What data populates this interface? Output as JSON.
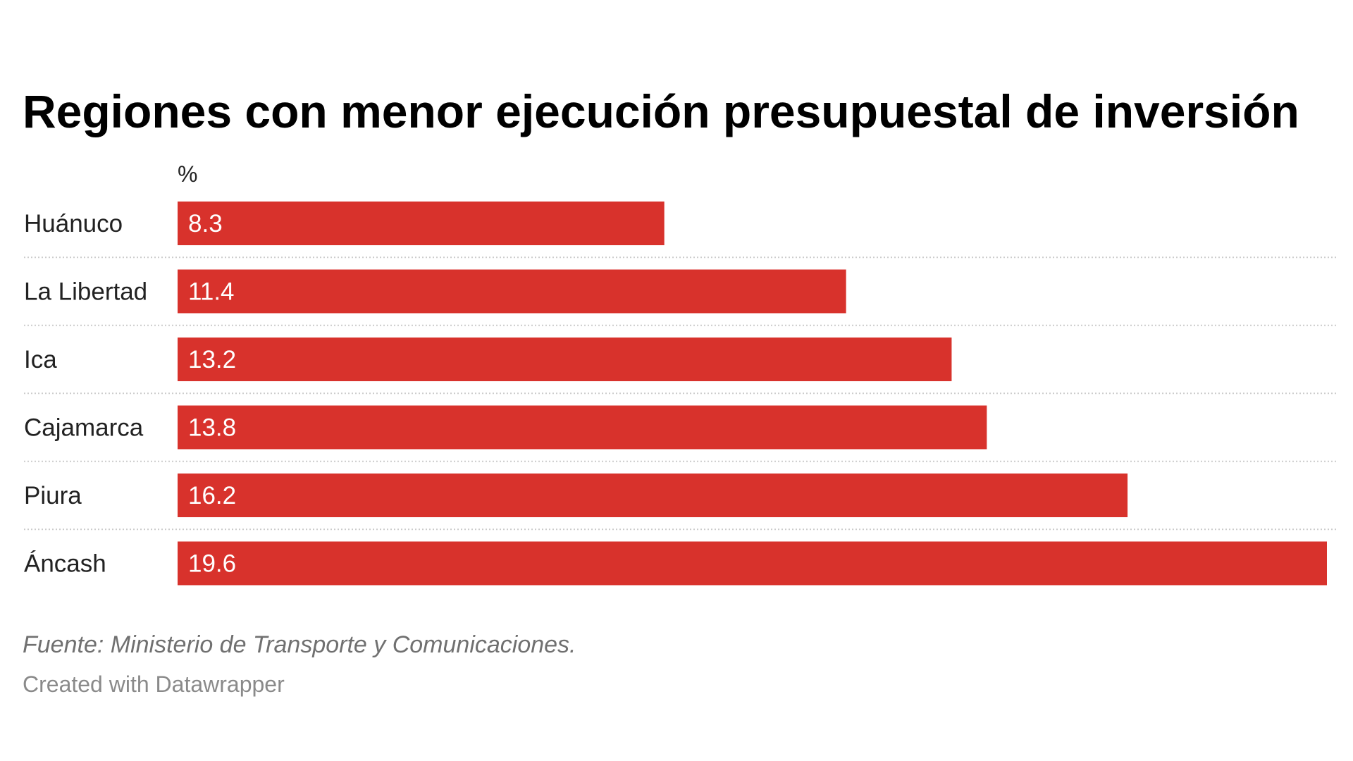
{
  "chart_data": {
    "type": "bar",
    "orientation": "horizontal",
    "title": "Regiones con menor ejecución presupuestal de inversión",
    "unit_label": "%",
    "categories": [
      "Huánuco",
      "La Libertad",
      "Ica",
      "Cajamarca",
      "Piura",
      "Áncash"
    ],
    "values": [
      8.3,
      11.4,
      13.2,
      13.8,
      16.2,
      19.6
    ],
    "value_labels": [
      "8.3",
      "11.4",
      "13.2",
      "13.8",
      "16.2",
      "19.6"
    ],
    "xlim": [
      0,
      19.6
    ],
    "grid": false,
    "legend": "none",
    "bar_color": "#d8322c",
    "separator_color": "#cccccc"
  },
  "footer": {
    "source": "Fuente: Ministerio de Transporte y Comunicaciones.",
    "credit": "Created with Datawrapper"
  }
}
